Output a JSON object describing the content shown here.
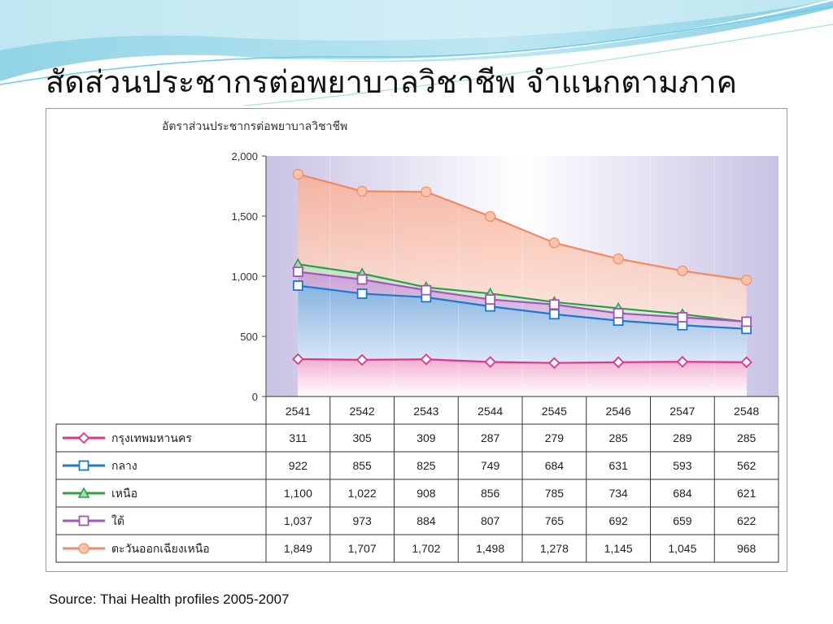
{
  "slide": {
    "title": "สัดส่วนประชากรต่อพยาบาลวิชาชีพ จำแนกตามภาค",
    "source": "Source: Thai Health profiles 2005-2007"
  },
  "colors": {
    "wave_light": "#bfe8f2",
    "wave_mid": "#7fcfe4",
    "grid_bg": "#c9c2e4"
  },
  "chart_data": {
    "type": "line",
    "ylabel": "อัตราส่วนประชากรต่อพยาบาลวิชาชีพ",
    "ylim": [
      0,
      2000
    ],
    "yticks": [
      "0",
      "500",
      "1,000",
      "1,500",
      "2,000"
    ],
    "yticks_values": [
      0,
      500,
      1000,
      1500,
      2000
    ],
    "categories": [
      "2541",
      "2542",
      "2543",
      "2544",
      "2545",
      "2546",
      "2547",
      "2548"
    ],
    "series": [
      {
        "name": "กรุงเทพมหานคร",
        "color": "#e0348f",
        "marker": "diamond",
        "fill_top": "#f6a9cd",
        "values": [
          311,
          305,
          309,
          287,
          279,
          285,
          289,
          285
        ],
        "labels": [
          "311",
          "305",
          "309",
          "287",
          "279",
          "285",
          "289",
          "285"
        ]
      },
      {
        "name": "กลาง",
        "color": "#1f78c8",
        "marker": "square-blue",
        "fill_top": "#7fb4e2",
        "values": [
          922,
          855,
          825,
          749,
          684,
          631,
          593,
          562
        ],
        "labels": [
          "922",
          "855",
          "825",
          "749",
          "684",
          "631",
          "593",
          "562"
        ]
      },
      {
        "name": "เหนือ",
        "color": "#2e9e4c",
        "marker": "triangle",
        "fill_top": "#bfe3c2",
        "values": [
          1100,
          1022,
          908,
          856,
          785,
          734,
          684,
          621
        ],
        "labels": [
          "1,100",
          "1,022",
          "908",
          "856",
          "785",
          "734",
          "684",
          "621"
        ]
      },
      {
        "name": "ใต้",
        "color": "#a356b8",
        "marker": "square-purple",
        "fill_top": "#c99bd6",
        "values": [
          1037,
          973,
          884,
          807,
          765,
          692,
          659,
          622
        ],
        "labels": [
          "1,037",
          "973",
          "884",
          "807",
          "765",
          "692",
          "659",
          "622"
        ]
      },
      {
        "name": "ตะวันออกเฉียงเหนือ",
        "color": "#ef8a66",
        "marker": "circle",
        "fill_top": "#f7b199",
        "values": [
          1849,
          1707,
          1702,
          1498,
          1278,
          1145,
          1045,
          968
        ],
        "labels": [
          "1,849",
          "1,707",
          "1,702",
          "1,498",
          "1,278",
          "1,145",
          "1,045",
          "968"
        ]
      }
    ]
  }
}
